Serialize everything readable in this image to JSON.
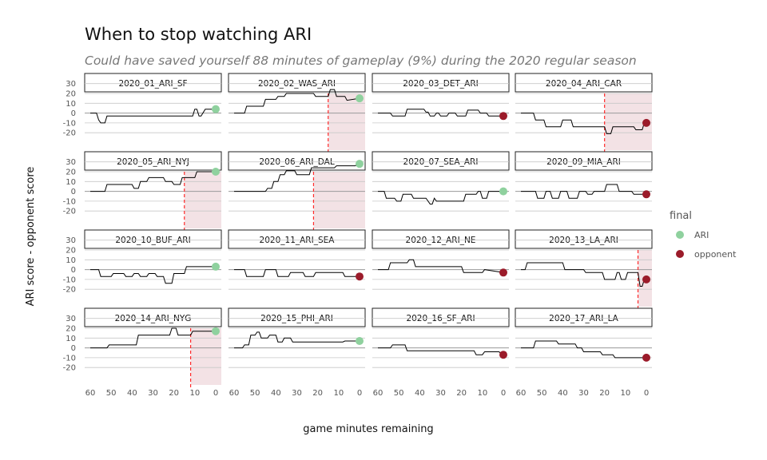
{
  "title": "When to stop watching ARI",
  "subtitle": "Could have saved yourself 88 minutes of gameplay (9%) during the 2020 regular season",
  "colors": {
    "ARI": "#8fd19e",
    "opponent": "#9b1b2a",
    "stop_line": "#ff2a2a",
    "shade": "#f3e2e5",
    "zero_line": "#9a9a9a",
    "grid": "#c8c8c8",
    "score_line": "#000000"
  },
  "chart_data": {
    "type": "line",
    "layout": "facet-grid 4x4",
    "xlabel": "game minutes remaining",
    "ylabel": "ARI score - opponent score",
    "x_reversed": true,
    "xlim": [
      60,
      0
    ],
    "ylim": [
      -25,
      30
    ],
    "x_ticks": [
      60,
      50,
      40,
      30,
      20,
      10,
      0
    ],
    "y_ticks": [
      30,
      20,
      10,
      0,
      -10,
      -20
    ],
    "legend": {
      "title": "final",
      "position": "right",
      "entries": [
        {
          "label": "ARI",
          "color_key": "ARI"
        },
        {
          "label": "opponent",
          "color_key": "opponent"
        }
      ]
    },
    "panels": [
      {
        "label": "2020_01_ARI_SF",
        "final": "ARI",
        "stop": null,
        "x": [
          60,
          57,
          56,
          55,
          53,
          52,
          51,
          50,
          20,
          11,
          10,
          9,
          8,
          7,
          5,
          4,
          0
        ],
        "y": [
          0,
          0,
          -7,
          -10,
          -10,
          -3,
          -3,
          -3,
          -3,
          -3,
          4,
          4,
          -3,
          -3,
          4,
          4,
          4
        ]
      },
      {
        "label": "2020_02_WAS_ARI",
        "final": "ARI",
        "stop": 15,
        "x": [
          60,
          55,
          54,
          46,
          45,
          40,
          39,
          36,
          35,
          28,
          27,
          22,
          21,
          15,
          14,
          12,
          11,
          7,
          6,
          0
        ],
        "y": [
          0,
          0,
          7,
          7,
          14,
          14,
          17,
          17,
          20,
          20,
          20,
          20,
          17,
          17,
          24,
          24,
          17,
          17,
          13,
          15
        ]
      },
      {
        "label": "2020_03_DET_ARI",
        "final": "opponent",
        "stop": null,
        "x": [
          60,
          54,
          53,
          47,
          46,
          38,
          37,
          36,
          35,
          33,
          32,
          31,
          30,
          27,
          26,
          23,
          22,
          18,
          17,
          12,
          11,
          8,
          7,
          0
        ],
        "y": [
          0,
          0,
          -3,
          -3,
          4,
          4,
          1,
          1,
          -3,
          -3,
          0,
          0,
          -3,
          -3,
          0,
          0,
          -3,
          -3,
          3,
          3,
          0,
          0,
          -3,
          -3
        ]
      },
      {
        "label": "2020_04_ARI_CAR",
        "final": "opponent",
        "stop": 20,
        "x": [
          60,
          54,
          53,
          49,
          48,
          41,
          40,
          36,
          35,
          30,
          29,
          20,
          19,
          17,
          16,
          6,
          5,
          2,
          1,
          0
        ],
        "y": [
          0,
          0,
          -7,
          -7,
          -14,
          -14,
          -7,
          -7,
          -14,
          -14,
          -14,
          -14,
          -21,
          -21,
          -14,
          -14,
          -17,
          -17,
          -10,
          -10
        ]
      },
      {
        "label": "2020_05_ARI_NYJ",
        "final": "ARI",
        "stop": 15,
        "x": [
          60,
          53,
          52,
          40,
          39,
          37,
          36,
          33,
          32,
          25,
          24,
          21,
          20,
          17,
          16,
          10,
          9,
          0
        ],
        "y": [
          0,
          0,
          7,
          7,
          3,
          3,
          10,
          10,
          14,
          14,
          10,
          10,
          7,
          7,
          14,
          14,
          20,
          20
        ]
      },
      {
        "label": "2020_06_ARI_DAL",
        "final": "ARI",
        "stop": 22,
        "x": [
          60,
          45,
          44,
          42,
          41,
          39,
          38,
          36,
          35,
          31,
          30,
          24,
          23,
          12,
          11,
          2,
          1,
          0
        ],
        "y": [
          0,
          0,
          3,
          3,
          10,
          10,
          17,
          17,
          21,
          21,
          17,
          17,
          24,
          24,
          26,
          26,
          28,
          28
        ]
      },
      {
        "label": "2020_07_SEA_ARI",
        "final": "ARI",
        "stop": null,
        "x": [
          60,
          57,
          56,
          52,
          51,
          49,
          48,
          44,
          43,
          37,
          36,
          35,
          34,
          33,
          32,
          28,
          27,
          19,
          18,
          13,
          12,
          11,
          10,
          8,
          7,
          1,
          0
        ],
        "y": [
          0,
          0,
          -7,
          -7,
          -10,
          -10,
          -3,
          -3,
          -7,
          -7,
          -10,
          -13,
          -13,
          -7,
          -10,
          -10,
          -10,
          -10,
          -3,
          -3,
          0,
          0,
          -7,
          -7,
          0,
          0,
          0
        ]
      },
      {
        "label": "2020_09_MIA_ARI",
        "final": "opponent",
        "stop": null,
        "x": [
          60,
          53,
          52,
          49,
          48,
          46,
          45,
          42,
          41,
          38,
          37,
          33,
          32,
          29,
          28,
          26,
          25,
          20,
          19,
          14,
          13,
          7,
          6,
          0
        ],
        "y": [
          0,
          0,
          -7,
          -7,
          0,
          0,
          -7,
          -7,
          0,
          0,
          -7,
          -7,
          0,
          0,
          -3,
          -3,
          0,
          0,
          7,
          7,
          0,
          0,
          -3,
          -3
        ]
      },
      {
        "label": "2020_10_BUF_ARI",
        "final": "ARI",
        "stop": null,
        "x": [
          60,
          56,
          55,
          50,
          49,
          44,
          43,
          40,
          39,
          37,
          36,
          33,
          32,
          29,
          28,
          25,
          24,
          21,
          20,
          15,
          14,
          0
        ],
        "y": [
          0,
          0,
          -7,
          -7,
          -4,
          -4,
          -7,
          -7,
          -4,
          -4,
          -7,
          -7,
          -4,
          -4,
          -7,
          -7,
          -14,
          -14,
          -4,
          -4,
          3,
          3
        ]
      },
      {
        "label": "2020_11_ARI_SEA",
        "final": "opponent",
        "stop": null,
        "x": [
          60,
          55,
          54,
          46,
          45,
          40,
          39,
          34,
          33,
          27,
          26,
          22,
          21,
          14,
          13,
          8,
          7,
          0
        ],
        "y": [
          0,
          0,
          -7,
          -7,
          0,
          0,
          -7,
          -7,
          -3,
          -3,
          -7,
          -7,
          -3,
          -3,
          -3,
          -3,
          -7,
          -7
        ]
      },
      {
        "label": "2020_12_ARI_NE",
        "final": "opponent",
        "stop": null,
        "x": [
          60,
          55,
          54,
          46,
          45,
          43,
          42,
          20,
          19,
          10,
          9,
          0
        ],
        "y": [
          0,
          0,
          7,
          7,
          10,
          10,
          3,
          3,
          -3,
          -3,
          0,
          -3
        ]
      },
      {
        "label": "2020_13_LA_ARI",
        "final": "opponent",
        "stop": 4,
        "x": [
          60,
          58,
          57,
          40,
          39,
          30,
          29,
          21,
          20,
          15,
          14,
          13,
          12,
          10,
          9,
          4,
          3,
          2,
          1,
          0
        ],
        "y": [
          0,
          0,
          7,
          7,
          0,
          0,
          -3,
          -3,
          -10,
          -10,
          -3,
          -3,
          -10,
          -10,
          -3,
          -3,
          -17,
          -17,
          -10,
          -10
        ]
      },
      {
        "label": "2020_14_ARI_NYG",
        "final": "ARI",
        "stop": 12,
        "x": [
          60,
          52,
          51,
          38,
          37,
          22,
          21,
          19,
          18,
          12,
          11,
          0
        ],
        "y": [
          0,
          0,
          3,
          3,
          13,
          13,
          20,
          20,
          13,
          13,
          17,
          17
        ]
      },
      {
        "label": "2020_15_PHI_ARI",
        "final": "ARI",
        "stop": null,
        "x": [
          60,
          56,
          55,
          53,
          52,
          50,
          49,
          48,
          47,
          44,
          43,
          40,
          39,
          37,
          36,
          33,
          32,
          29,
          28,
          8,
          7,
          0
        ],
        "y": [
          0,
          0,
          3,
          3,
          13,
          13,
          16,
          16,
          10,
          10,
          13,
          13,
          6,
          6,
          10,
          10,
          6,
          6,
          6,
          6,
          7,
          7
        ]
      },
      {
        "label": "2020_16_SF_ARI",
        "final": "opponent",
        "stop": null,
        "x": [
          60,
          54,
          53,
          47,
          46,
          22,
          21,
          14,
          13,
          10,
          9,
          2,
          1,
          0
        ],
        "y": [
          0,
          0,
          3,
          3,
          -3,
          -3,
          -3,
          -3,
          -7,
          -7,
          -4,
          -4,
          -7,
          -7
        ]
      },
      {
        "label": "2020_17_ARI_LA",
        "final": "opponent",
        "stop": null,
        "x": [
          60,
          54,
          53,
          43,
          42,
          34,
          33,
          31,
          30,
          22,
          21,
          16,
          15,
          0
        ],
        "y": [
          0,
          0,
          7,
          7,
          4,
          4,
          0,
          0,
          -4,
          -4,
          -7,
          -7,
          -10,
          -10
        ]
      }
    ]
  }
}
